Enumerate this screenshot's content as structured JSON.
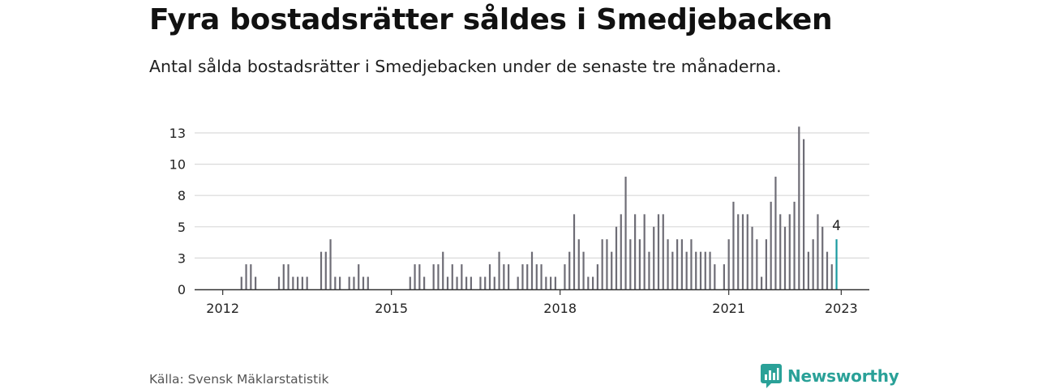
{
  "title": "Fyra bostadsrätter såldes i Smedjebacken",
  "subtitle": "Antal sålda bostadsrätter i Smedjebacken under de senaste tre månaderna.",
  "source": "Källa: Svensk Mäklarstatistik",
  "brand": "Newsworthy",
  "colors": {
    "bar": "#6e6d76",
    "highlight": "#1a9aa0",
    "grid": "#d9d9d9",
    "axis": "#333333"
  },
  "chart_data": {
    "type": "bar",
    "x_axis": {
      "tick_labels": [
        "2012",
        "2015",
        "2018",
        "2021",
        "2023"
      ],
      "tick_positions": [
        2012,
        2015,
        2018,
        2021,
        2023
      ],
      "range": [
        2011.5,
        2023.5
      ]
    },
    "y_axis": {
      "tick_labels": [
        "0",
        "3",
        "5",
        "8",
        "10",
        "13"
      ],
      "tick_values": [
        0,
        2.5,
        5,
        7.5,
        10,
        12.5
      ],
      "range": [
        0,
        12.5
      ]
    },
    "grid": true,
    "highlight_label": "4",
    "series": [
      {
        "values": [
          0,
          0,
          0,
          0,
          1,
          2,
          2,
          1,
          0,
          0,
          0,
          0,
          1,
          2,
          2,
          1,
          1,
          1,
          1,
          0,
          0,
          3,
          3,
          4,
          1,
          1,
          0,
          1,
          1,
          2,
          1,
          1,
          0,
          0,
          0,
          0,
          0,
          0,
          0,
          0,
          1,
          2,
          2,
          1,
          0,
          2,
          2,
          3,
          1,
          2,
          1,
          2,
          1,
          1,
          0,
          1,
          1,
          2,
          1,
          3,
          2,
          2,
          0,
          1,
          2,
          2,
          3,
          2,
          2,
          1,
          1,
          1,
          0,
          2,
          3,
          6,
          4,
          3,
          1,
          1,
          2,
          4,
          4,
          3,
          5,
          6,
          9,
          4,
          6,
          4,
          6,
          3,
          5,
          6,
          6,
          4,
          3,
          4,
          4,
          3,
          4,
          3,
          3,
          3,
          3,
          2,
          0,
          2,
          4,
          7,
          6,
          6,
          6,
          5,
          4,
          1,
          4,
          7,
          9,
          6,
          5,
          6,
          7,
          13,
          12,
          3,
          4,
          6,
          5,
          3,
          2,
          4
        ]
      }
    ]
  }
}
